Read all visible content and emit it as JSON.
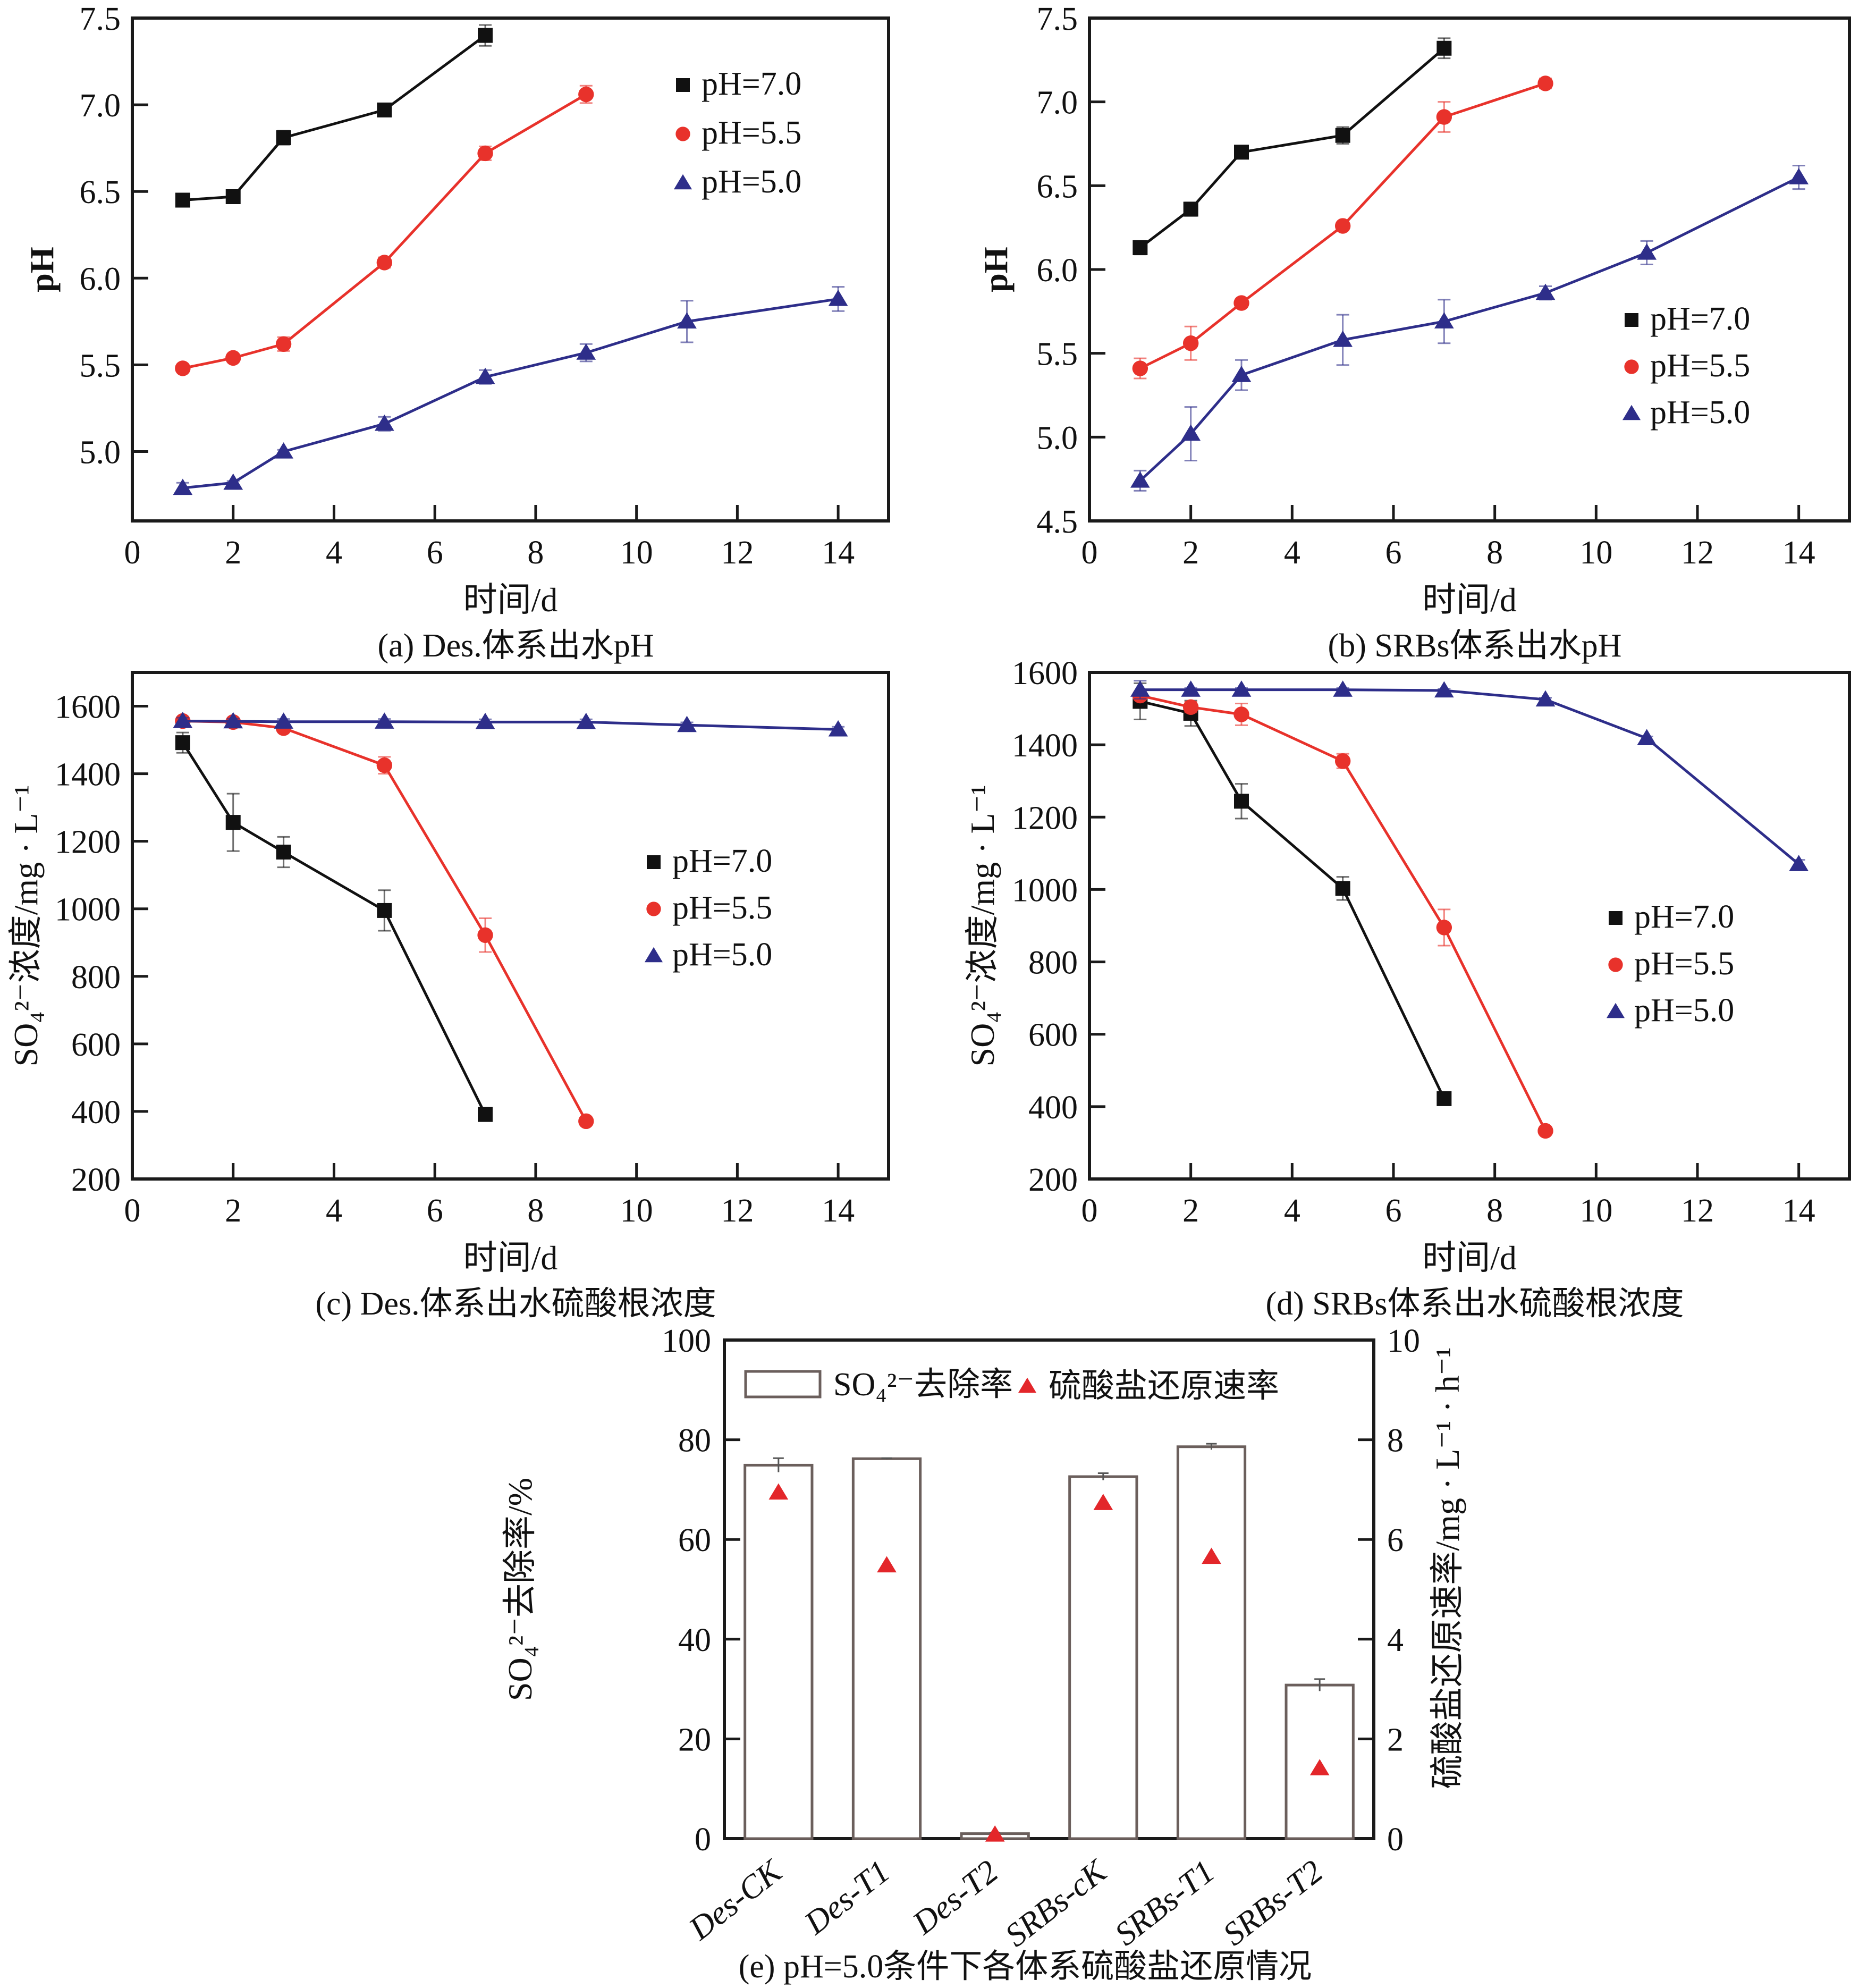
{
  "figure": {
    "colors": {
      "pH7": "#111111",
      "pH55": "#e8322b",
      "pH50": "#2e2e8a",
      "bar_stroke": "#6b5f5c",
      "rate_marker": "#e3262a"
    }
  },
  "chart_data": [
    {
      "id": "a",
      "type": "line",
      "caption": "(a) Des.体系出水pH",
      "title": "",
      "xlabel": "时间/d",
      "ylabel": "pH",
      "xlim": [
        0,
        15
      ],
      "ylim": [
        4.6,
        7.5
      ],
      "xticks": [
        0,
        2,
        4,
        6,
        8,
        10,
        12,
        14
      ],
      "xtick_labels": [
        "0",
        "2",
        "4",
        "6",
        "8",
        "10",
        "12",
        "14"
      ],
      "yticks": [
        5.0,
        5.5,
        6.0,
        6.5,
        7.0,
        7.5
      ],
      "ytick_labels": [
        "5.0",
        "5.5",
        "6.0",
        "6.5",
        "7.0",
        "7.5"
      ],
      "legend_position": "top-right",
      "grid": false,
      "series": [
        {
          "name": "pH=7.0",
          "marker": "square",
          "color_key": "pH7",
          "x": [
            1,
            2,
            3,
            5,
            7
          ],
          "y": [
            6.45,
            6.47,
            6.81,
            6.97,
            7.4
          ],
          "err": [
            0.01,
            0.01,
            0.04,
            0.02,
            0.06
          ]
        },
        {
          "name": "pH=5.5",
          "marker": "circle",
          "color_key": "pH55",
          "x": [
            1,
            2,
            3,
            5,
            7,
            9
          ],
          "y": [
            5.48,
            5.54,
            5.62,
            6.09,
            6.72,
            7.06
          ],
          "err": [
            0.01,
            0.01,
            0.04,
            0.03,
            0.04,
            0.05
          ]
        },
        {
          "name": "pH=5.0",
          "marker": "triangle",
          "color_key": "pH50",
          "x": [
            1,
            2,
            3,
            5,
            7,
            9,
            11,
            14
          ],
          "y": [
            4.79,
            4.82,
            5.0,
            5.16,
            5.43,
            5.57,
            5.75,
            5.88
          ],
          "err": [
            0.03,
            0.01,
            0.01,
            0.04,
            0.04,
            0.05,
            0.12,
            0.07
          ]
        }
      ]
    },
    {
      "id": "b",
      "type": "line",
      "caption": "(b) SRBs体系出水pH",
      "title": "",
      "xlabel": "时间/d",
      "ylabel": "pH",
      "xlim": [
        0,
        15
      ],
      "ylim": [
        4.5,
        7.5
      ],
      "xticks": [
        0,
        2,
        4,
        6,
        8,
        10,
        12,
        14
      ],
      "xtick_labels": [
        "0",
        "2",
        "4",
        "6",
        "8",
        "10",
        "12",
        "14"
      ],
      "yticks": [
        4.5,
        5.0,
        5.5,
        6.0,
        6.5,
        7.0,
        7.5
      ],
      "ytick_labels": [
        "4.5",
        "5.0",
        "5.5",
        "6.0",
        "6.5",
        "7.0",
        "7.5"
      ],
      "legend_position": "center-right",
      "grid": false,
      "series": [
        {
          "name": "pH=7.0",
          "marker": "square",
          "color_key": "pH7",
          "x": [
            1,
            2,
            3,
            5,
            7
          ],
          "y": [
            6.13,
            6.36,
            6.7,
            6.8,
            7.32
          ],
          "err": [
            0.04,
            0.04,
            0.01,
            0.05,
            0.06
          ]
        },
        {
          "name": "pH=5.5",
          "marker": "circle",
          "color_key": "pH55",
          "x": [
            1,
            2,
            3,
            5,
            7,
            9
          ],
          "y": [
            5.41,
            5.56,
            5.8,
            6.26,
            6.91,
            7.11
          ],
          "err": [
            0.06,
            0.1,
            0.01,
            0.01,
            0.09,
            0.03
          ]
        },
        {
          "name": "pH=5.0",
          "marker": "triangle",
          "color_key": "pH50",
          "x": [
            1,
            2,
            3,
            5,
            7,
            9,
            11,
            14
          ],
          "y": [
            4.74,
            5.02,
            5.37,
            5.58,
            5.69,
            5.86,
            6.1,
            6.55
          ],
          "err": [
            0.06,
            0.16,
            0.09,
            0.15,
            0.13,
            0.04,
            0.07,
            0.07
          ]
        }
      ]
    },
    {
      "id": "c",
      "type": "line",
      "caption": "(c) Des.体系出水硫酸根浓度",
      "title": "",
      "xlabel": "时间/d",
      "ylabel": "SO₄²⁻浓度/mg · L⁻¹",
      "xlim": [
        0,
        15
      ],
      "ylim": [
        200,
        1700
      ],
      "xticks": [
        0,
        2,
        4,
        6,
        8,
        10,
        12,
        14
      ],
      "xtick_labels": [
        "0",
        "2",
        "4",
        "6",
        "8",
        "10",
        "12",
        "14"
      ],
      "yticks": [
        200,
        400,
        600,
        800,
        1000,
        1200,
        1400,
        1600
      ],
      "ytick_labels": [
        "200",
        "400",
        "600",
        "800",
        "1000",
        "1200",
        "1400",
        "1600"
      ],
      "legend_position": "center-right",
      "grid": false,
      "series": [
        {
          "name": "pH=7.0",
          "marker": "square",
          "color_key": "pH7",
          "x": [
            1,
            2,
            3,
            5,
            7
          ],
          "y": [
            1492,
            1256,
            1168,
            995,
            391
          ],
          "err": [
            30,
            85,
            45,
            60,
            10
          ]
        },
        {
          "name": "pH=5.5",
          "marker": "circle",
          "color_key": "pH55",
          "x": [
            1,
            2,
            3,
            5,
            7,
            9
          ],
          "y": [
            1556,
            1553,
            1535,
            1425,
            922,
            371
          ],
          "err": [
            8,
            8,
            8,
            25,
            50,
            5
          ]
        },
        {
          "name": "pH=5.0",
          "marker": "triangle",
          "color_key": "pH50",
          "x": [
            1,
            2,
            3,
            5,
            7,
            9,
            11,
            14
          ],
          "y": [
            1556,
            1555,
            1554,
            1554,
            1553,
            1553,
            1544,
            1531
          ],
          "err": [
            10,
            8,
            8,
            8,
            8,
            8,
            8,
            8
          ]
        }
      ]
    },
    {
      "id": "d",
      "type": "line",
      "caption": "(d) SRBs体系出水硫酸根浓度",
      "title": "",
      "xlabel": "时间/d",
      "ylabel": "SO₄²⁻浓度/mg · L⁻¹",
      "xlim": [
        0,
        15
      ],
      "ylim": [
        200,
        1600
      ],
      "xticks": [
        0,
        2,
        4,
        6,
        8,
        10,
        12,
        14
      ],
      "xtick_labels": [
        "0",
        "2",
        "4",
        "6",
        "8",
        "10",
        "12",
        "14"
      ],
      "yticks": [
        200,
        400,
        600,
        800,
        1000,
        1200,
        1400,
        1600
      ],
      "ytick_labels": [
        "200",
        "400",
        "600",
        "800",
        "1000",
        "1200",
        "1400",
        "1600"
      ],
      "legend_position": "center-right",
      "grid": false,
      "series": [
        {
          "name": "pH=7.0",
          "marker": "square",
          "color_key": "pH7",
          "x": [
            1,
            2,
            3,
            5,
            7
          ],
          "y": [
            1520,
            1487,
            1244,
            1003,
            422
          ],
          "err": [
            50,
            35,
            48,
            32,
            8
          ]
        },
        {
          "name": "pH=5.5",
          "marker": "circle",
          "color_key": "pH55",
          "x": [
            1,
            2,
            3,
            5,
            7,
            9
          ],
          "y": [
            1536,
            1504,
            1484,
            1355,
            895,
            333
          ],
          "err": [
            10,
            15,
            30,
            20,
            50,
            5
          ]
        },
        {
          "name": "pH=5.0",
          "marker": "triangle",
          "color_key": "pH50",
          "x": [
            1,
            2,
            3,
            5,
            7,
            9,
            11,
            14
          ],
          "y": [
            1552,
            1552,
            1552,
            1552,
            1550,
            1525,
            1418,
            1070
          ],
          "err": [
            25,
            5,
            5,
            5,
            5,
            5,
            5,
            12
          ]
        }
      ]
    },
    {
      "id": "e",
      "type": "bar",
      "caption": "(e) pH=5.0条件下各体系硫酸盐还原情况",
      "title": "",
      "xlabel": "",
      "ylabel": "SO₄²⁻去除率/%",
      "ylabel_right": "硫酸盐还原速率/mg · L⁻¹ · h⁻¹",
      "categories": [
        "Des-CK",
        "Des-T1",
        "Des-T2",
        "SRBs-cK",
        "SRBs-T1",
        "SRBs-T2"
      ],
      "ylim": [
        0,
        100
      ],
      "ylim_right": [
        0,
        10
      ],
      "yticks": [
        0,
        20,
        40,
        60,
        80,
        100
      ],
      "ytick_labels": [
        "0",
        "20",
        "40",
        "60",
        "80",
        "100"
      ],
      "yticks_right": [
        0,
        2,
        4,
        6,
        8,
        10
      ],
      "ytick_labels_right": [
        "0",
        "2",
        "4",
        "6",
        "8",
        "10"
      ],
      "legend_position": "top",
      "grid": false,
      "series": [
        {
          "name": "SO₄²⁻去除率",
          "kind": "bar",
          "axis": "left",
          "values": [
            74.9,
            76.2,
            1.0,
            72.6,
            78.6,
            30.8
          ],
          "err": [
            1.4,
            0.1,
            0.2,
            0.7,
            0.6,
            1.2
          ]
        },
        {
          "name": "硫酸盐还原速率",
          "kind": "marker",
          "marker": "triangle",
          "axis": "right",
          "values": [
            6.94,
            5.48,
            0.08,
            6.73,
            5.65,
            1.41
          ]
        }
      ]
    }
  ]
}
